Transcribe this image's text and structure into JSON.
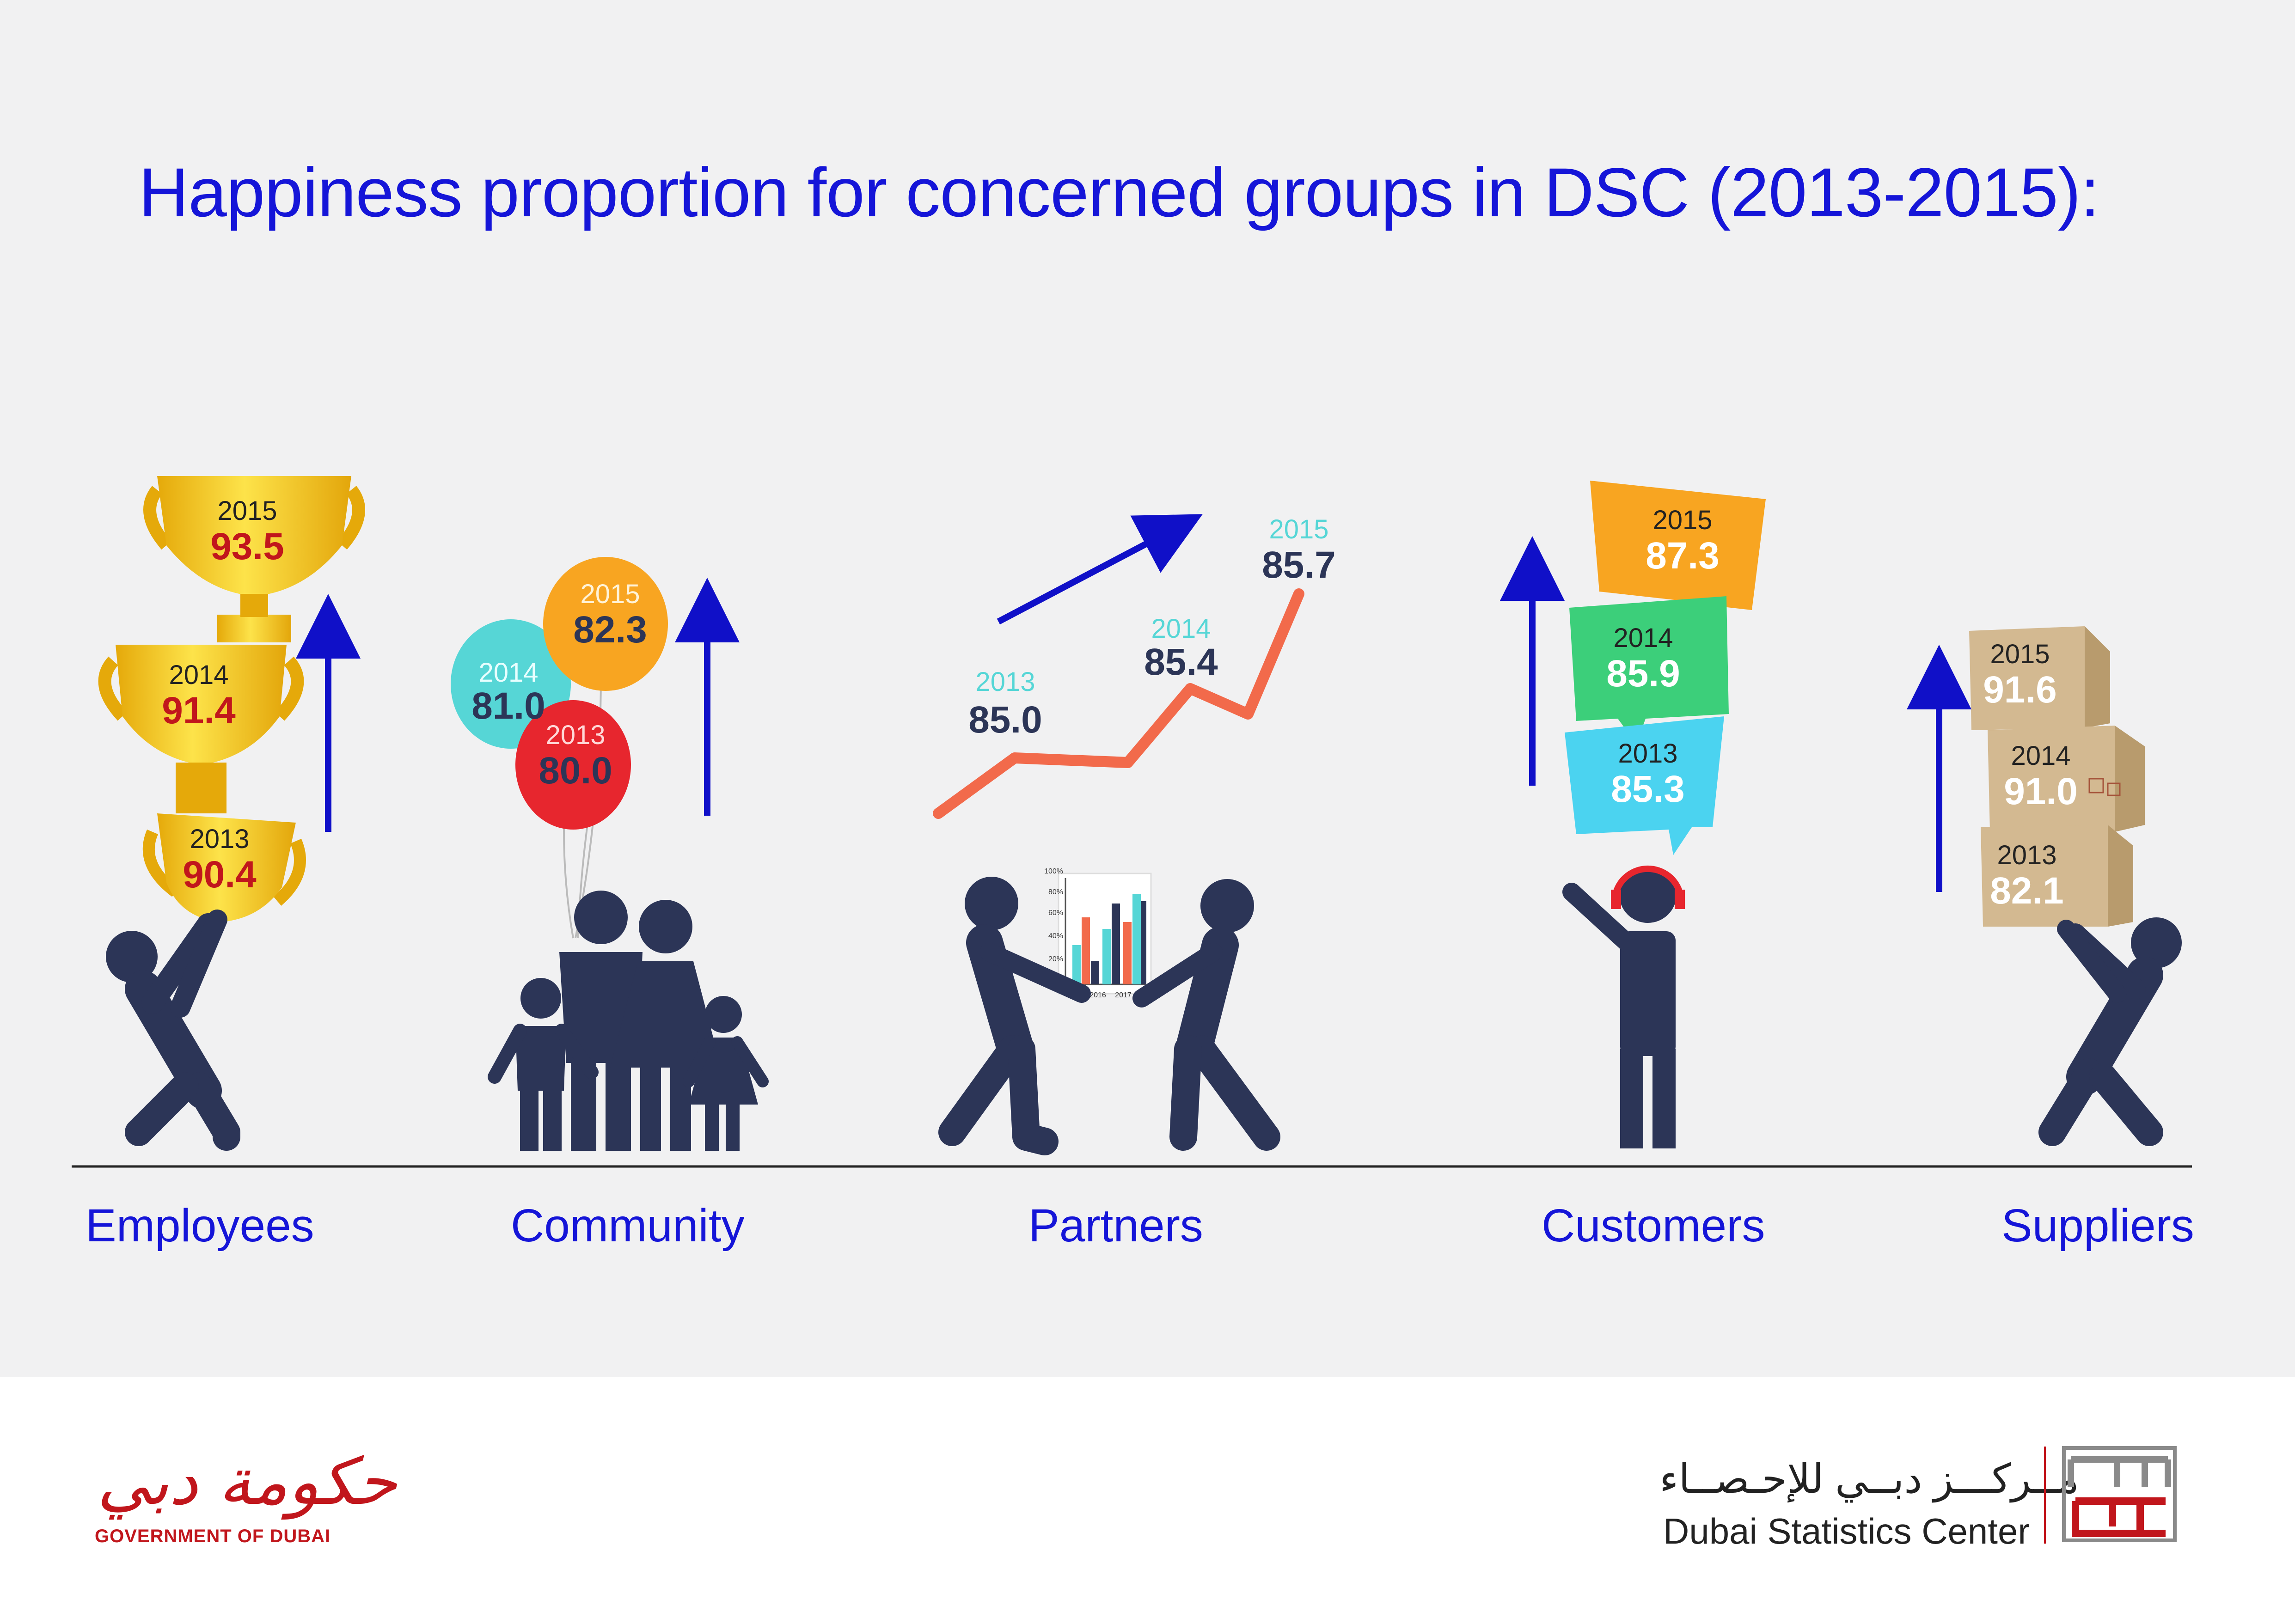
{
  "title": "Happiness proportion for concerned groups in DSC (2013-2015):",
  "groups": {
    "employees": {
      "label": "Employees",
      "values": [
        {
          "year": "2013",
          "value": "90.4"
        },
        {
          "year": "2014",
          "value": "91.4"
        },
        {
          "year": "2015",
          "value": "93.5"
        }
      ]
    },
    "community": {
      "label": "Community",
      "values": [
        {
          "year": "2013",
          "value": "80.0"
        },
        {
          "year": "2014",
          "value": "81.0"
        },
        {
          "year": "2015",
          "value": "82.3"
        }
      ]
    },
    "partners": {
      "label": "Partners",
      "values": [
        {
          "year": "2013",
          "value": "85.0"
        },
        {
          "year": "2014",
          "value": "85.4"
        },
        {
          "year": "2015",
          "value": "85.7"
        }
      ]
    },
    "customers": {
      "label": "Customers",
      "values": [
        {
          "year": "2013",
          "value": "85.3"
        },
        {
          "year": "2014",
          "value": "85.9"
        },
        {
          "year": "2015",
          "value": "87.3"
        }
      ]
    },
    "suppliers": {
      "label": "Suppliers",
      "values": [
        {
          "year": "2013",
          "value": "82.1"
        },
        {
          "year": "2014",
          "value": "91.0"
        },
        {
          "year": "2015",
          "value": "91.6"
        }
      ]
    }
  },
  "mini_chart": {
    "y_ticks": [
      "100%",
      "80%",
      "60%",
      "40%",
      "20%"
    ],
    "x_ticks": [
      "2016",
      "2017"
    ]
  },
  "footer": {
    "gov_arabic": "حكومة دبي",
    "gov_english": "GOVERNMENT OF DUBAI",
    "dsc_arabic": "مــركـــز دبــي للإحـصــاء",
    "dsc_english": "Dubai Statistics Center",
    "dsc_mark_text": "دبي للإحصاء"
  },
  "colors": {
    "title": "#1515d8",
    "figure": "#2c3557",
    "arrow": "#1010c8",
    "trophy": "#f7c514",
    "value_red": "#c1161c",
    "line": "#f26a4b",
    "teal": "#56d6d6",
    "bubble_orange": "#f8a521",
    "bubble_green": "#3ccf7a",
    "bubble_blue": "#4bd3f0",
    "box": "#d3b991"
  }
}
